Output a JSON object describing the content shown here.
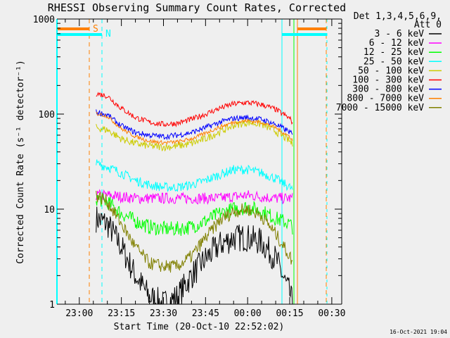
{
  "chart_data": {
    "type": "line",
    "title": "RHESSI Observing Summary Count Rates, Corrected",
    "xlabel": "Start Time (20-Oct-10 22:52:02)",
    "ylabel": "Corrected Count Rate (s⁻¹ detector⁻¹)",
    "yscale": "log",
    "ylim": [
      1,
      1000
    ],
    "xlim": [
      "22:52:02",
      "00:33:30"
    ],
    "ytick_labels": [
      "1",
      "10",
      "100",
      "1000"
    ],
    "xtick_labels": [
      "23:00",
      "23:15",
      "23:30",
      "23:45",
      "00:00",
      "00:15",
      "00:30"
    ],
    "grid": false,
    "legend": {
      "placement": "right",
      "header": [
        "Det 1,3,4,5,6,9,",
        "Att 0"
      ]
    },
    "footer": "16-Oct-2021 19:04",
    "flags": [
      {
        "label": "S",
        "color": "#ff8000"
      },
      {
        "label": "N",
        "color": "#00ffff"
      }
    ],
    "x": [
      "23:06",
      "23:10",
      "23:15",
      "23:20",
      "23:25",
      "23:30",
      "23:35",
      "23:40",
      "23:45",
      "23:50",
      "23:55",
      "00:00",
      "00:05",
      "00:10",
      "00:15",
      "00:16"
    ],
    "series": [
      {
        "name": "3 - 6 keV",
        "color": "#000000",
        "values": [
          8,
          7,
          4,
          2,
          1.2,
          1,
          1.2,
          2,
          3,
          4.2,
          5,
          5,
          4.5,
          3,
          1.3,
          1
        ]
      },
      {
        "name": "6 - 12 keV",
        "color": "#ff00ff",
        "values": [
          14,
          14,
          13.5,
          13,
          13,
          13,
          13,
          13,
          13,
          13,
          13.5,
          14,
          13.5,
          13,
          13,
          13
        ]
      },
      {
        "name": "12 - 25 keV",
        "color": "#00ff00",
        "values": [
          13,
          12,
          9,
          7.5,
          6.5,
          6.2,
          6.2,
          6.5,
          7.5,
          9,
          10,
          10.5,
          9.5,
          8,
          7,
          6.5
        ]
      },
      {
        "name": "25 - 50 keV",
        "color": "#00ffff",
        "values": [
          30,
          28,
          24,
          20,
          18,
          17,
          17,
          18,
          20,
          23,
          26,
          26,
          24,
          21,
          17,
          16
        ]
      },
      {
        "name": "50 - 100 keV",
        "color": "#cccc00",
        "values": [
          72,
          68,
          55,
          49,
          46,
          45,
          46,
          49,
          55,
          65,
          76,
          82,
          78,
          66,
          52,
          48
        ]
      },
      {
        "name": "100 - 300 keV",
        "color": "#ff0000",
        "values": [
          165,
          155,
          115,
          92,
          82,
          78,
          80,
          88,
          100,
          115,
          128,
          132,
          126,
          112,
          90,
          82
        ]
      },
      {
        "name": "300 - 800 keV",
        "color": "#0000ff",
        "values": [
          105,
          98,
          75,
          64,
          60,
          58,
          60,
          64,
          72,
          82,
          90,
          92,
          88,
          78,
          65,
          60
        ]
      },
      {
        "name": "800 - 7000 keV",
        "color": "#ff8000",
        "values": [
          102,
          95,
          70,
          58,
          52,
          50,
          51,
          55,
          63,
          73,
          82,
          85,
          82,
          72,
          58,
          53
        ]
      },
      {
        "name": "7000 - 15000 keV",
        "color": "#808000",
        "values": [
          14,
          12,
          7,
          4,
          2.7,
          2.5,
          2.5,
          3.2,
          5,
          7.5,
          9.5,
          10,
          8.5,
          5.5,
          3.2,
          2.8
        ]
      }
    ]
  }
}
